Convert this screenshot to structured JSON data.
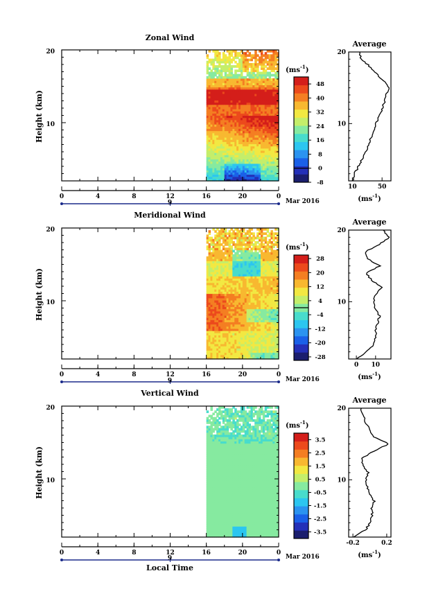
{
  "date_label": "Mar 2016",
  "xlabel": "Local Time",
  "x_ticks": [
    "0",
    "4",
    "8",
    "12",
    "16",
    "20",
    "0"
  ],
  "day_label": "9",
  "colors": {
    "palette": [
      "#1b1e6e",
      "#2430b8",
      "#1a60e8",
      "#2b93f0",
      "#2cc6f0",
      "#48dccc",
      "#86eaa0",
      "#c4ee6a",
      "#f2e842",
      "#f8b830",
      "#f47e22",
      "#ec4a1c",
      "#d41e1a"
    ]
  },
  "chart_data": [
    {
      "type": "heatmap",
      "title": "Zonal Wind",
      "ylabel": "Height (km)",
      "y_ticks": [
        "20",
        "10"
      ],
      "ylim": [
        2,
        20
      ],
      "xlim": [
        0,
        24
      ],
      "data_start_hour": 16,
      "unit_label": "(ms",
      "unit_exp": "-1",
      "colorbar": {
        "min": -8,
        "max": 52,
        "labels": [
          "48",
          "40",
          "32",
          "24",
          "16",
          "8",
          "0",
          "-8"
        ],
        "contour": 0
      },
      "profile": {
        "title": "Average",
        "xlim": [
          5,
          62
        ],
        "x_ticks": [
          "10",
          "50"
        ],
        "heights": [
          2,
          3,
          4,
          5,
          6,
          7,
          8,
          9,
          10,
          11,
          12,
          13,
          14,
          15,
          16,
          17,
          18,
          19,
          20
        ],
        "values": [
          10,
          13,
          18,
          23,
          28,
          31,
          35,
          38,
          42,
          46,
          50,
          53,
          56,
          59,
          52,
          42,
          33,
          22,
          20
        ]
      }
    },
    {
      "type": "heatmap",
      "title": "Meridional Wind",
      "ylabel": "Height (km)",
      "y_ticks": [
        "20",
        "10"
      ],
      "ylim": [
        2,
        20
      ],
      "xlim": [
        0,
        24
      ],
      "data_start_hour": 16,
      "unit_label": "(ms",
      "unit_exp": "-1",
      "colorbar": {
        "min": -30,
        "max": 30,
        "labels": [
          "28",
          "20",
          "12",
          "4",
          "-4",
          "-12",
          "-20",
          "-28"
        ],
        "contour": 0
      },
      "profile": {
        "title": "Average",
        "xlim": [
          -4,
          18
        ],
        "x_ticks": [
          "0",
          "10"
        ],
        "heights": [
          2,
          3,
          4,
          5,
          6,
          7,
          8,
          9,
          10,
          11,
          12,
          13,
          14,
          15,
          16,
          17,
          18,
          19,
          20
        ],
        "values": [
          0,
          5,
          9,
          10,
          10,
          11,
          12,
          10,
          9,
          10,
          13,
          8,
          5,
          12,
          6,
          5,
          12,
          17,
          14
        ]
      }
    },
    {
      "type": "heatmap",
      "title": "Vertical Wind",
      "ylabel": "Height (km)",
      "y_ticks": [
        "20",
        "10"
      ],
      "ylim": [
        2,
        20
      ],
      "xlim": [
        0,
        24
      ],
      "data_start_hour": 16,
      "unit_label": "(ms",
      "unit_exp": "-1",
      "colorbar": {
        "min": -4,
        "max": 4,
        "labels": [
          "3.5",
          "2.5",
          "1.5",
          "0.5",
          "-0.5",
          "-1.5",
          "-2.5",
          "-3.5"
        ],
        "contour": null
      },
      "profile": {
        "title": "Average",
        "xlim": [
          -0.25,
          0.25
        ],
        "x_ticks": [
          "-0.2",
          "0.2"
        ],
        "heights": [
          2,
          3,
          4,
          5,
          6,
          7,
          8,
          9,
          10,
          11,
          12,
          13,
          14,
          15,
          16,
          17,
          18,
          19,
          20
        ],
        "values": [
          -0.18,
          -0.05,
          0.0,
          0.03,
          0.02,
          0.05,
          0.0,
          -0.03,
          -0.05,
          -0.02,
          -0.08,
          -0.1,
          0.05,
          0.22,
          0.05,
          0.0,
          -0.05,
          -0.08,
          -0.1
        ]
      }
    }
  ]
}
